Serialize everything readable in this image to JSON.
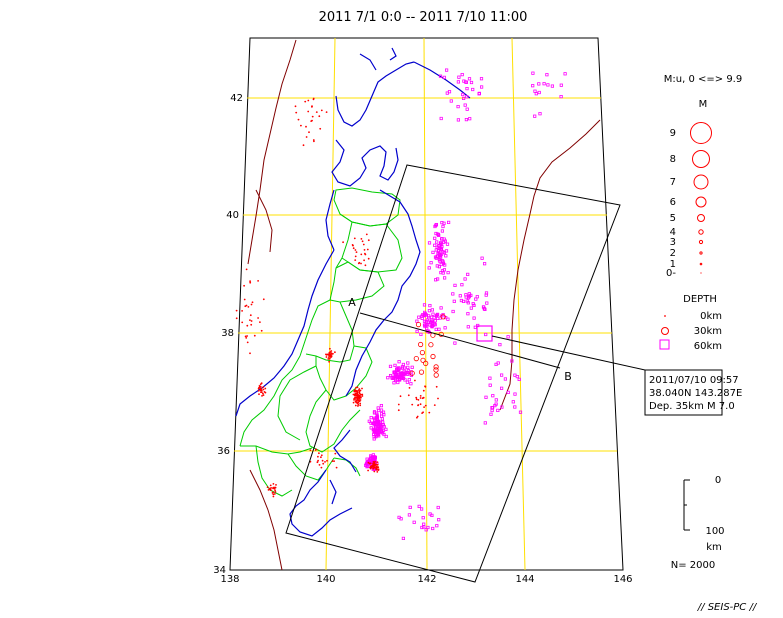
{
  "title": "2011 7/1 0:0 -- 2011 7/10 11:00",
  "lat_labels": [
    "42",
    "40",
    "38",
    "36",
    "34"
  ],
  "lon_labels": [
    "138",
    "140",
    "142",
    "144",
    "146"
  ],
  "section": {
    "start_label": "A",
    "end_label": "B"
  },
  "magnitude_legend": {
    "header": "M:u, 0 <=> 9.9",
    "title": "M",
    "levels": [
      "9",
      "8",
      "7",
      "6",
      "5",
      "4",
      "3",
      "2",
      "1",
      "0-"
    ]
  },
  "depth_legend": {
    "title": "DEPTH",
    "items": [
      {
        "label": "0km",
        "symbol": "dot",
        "color": "#ff0000"
      },
      {
        "label": "30km",
        "symbol": "circle",
        "color": "#ff0000"
      },
      {
        "label": "60km",
        "symbol": "square",
        "color": "#ff00ff"
      }
    ]
  },
  "mainshock": {
    "datetime": "2011/07/10 09:57",
    "location": "38.040N  143.287E",
    "depth_mag": "Dep. 35km    M 7.0"
  },
  "scale": {
    "top": "0",
    "bottom": "100",
    "unit": "km"
  },
  "count": "N= 2000",
  "watermark": "// SEIS-PC //",
  "colors": {
    "grid": "#ffe000",
    "coast": "#0000cc",
    "prefecture": "#00cc00",
    "plate": "#800000",
    "shallow": "#ff0000",
    "deep": "#ff00ff"
  }
}
